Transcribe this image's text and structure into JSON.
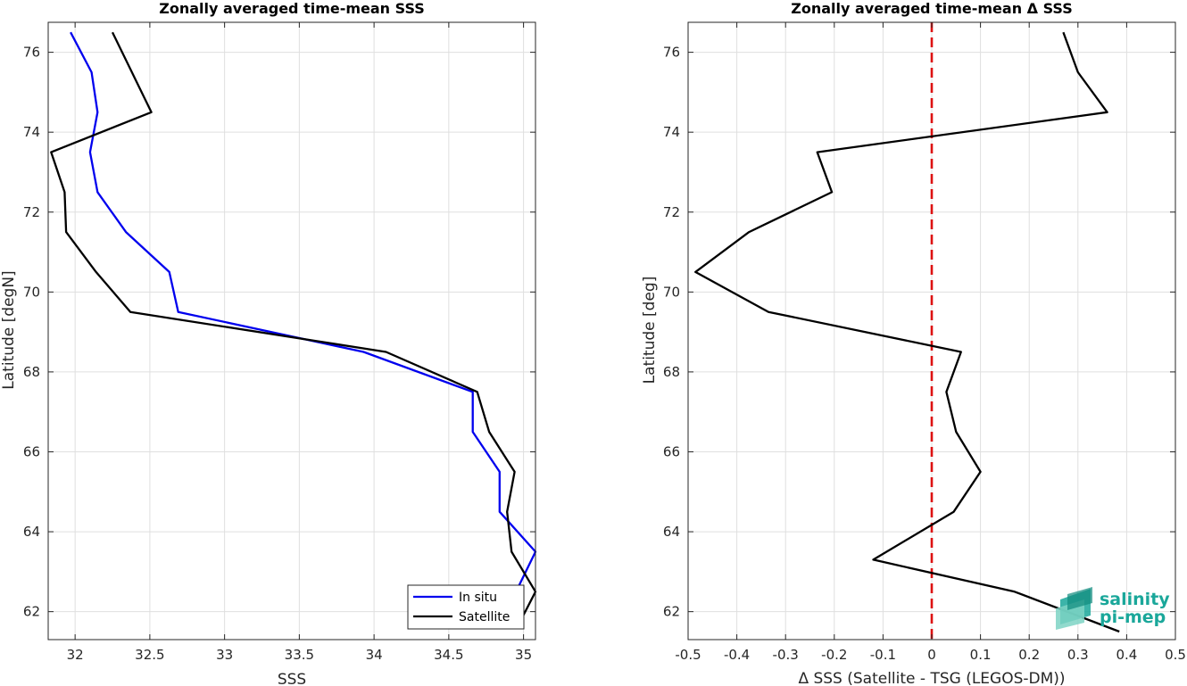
{
  "chart_data": [
    {
      "type": "line",
      "title": "Zonally averaged time-mean SSS",
      "xlabel": "SSS",
      "ylabel": "Latitude [degN]",
      "xlim": [
        31.82,
        35.08
      ],
      "ylim": [
        61.3,
        76.75
      ],
      "xticks": [
        32,
        32.5,
        33,
        33.5,
        34,
        34.5,
        35
      ],
      "xtick_labels": [
        "32",
        "32.5",
        "33",
        "33.5",
        "34",
        "34.5",
        "35"
      ],
      "yticks": [
        62,
        64,
        66,
        68,
        70,
        72,
        74,
        76
      ],
      "ytick_labels": [
        "62",
        "64",
        "66",
        "68",
        "70",
        "72",
        "74",
        "76"
      ],
      "grid": true,
      "legend_position": "bottom-right",
      "series": [
        {
          "name": "In situ",
          "color": "#0000ee",
          "x": [
            31.97,
            32.11,
            32.15,
            32.1,
            32.15,
            32.34,
            32.63,
            32.69,
            33.93,
            34.66,
            34.66,
            34.84,
            34.84,
            35.08,
            34.95,
            34.96
          ],
          "y": [
            76.5,
            75.5,
            74.5,
            73.5,
            72.5,
            71.5,
            70.5,
            69.5,
            68.5,
            67.5,
            66.5,
            65.5,
            64.5,
            63.5,
            62.5,
            61.6
          ]
        },
        {
          "name": "Satellite",
          "color": "#000000",
          "x": [
            32.25,
            32.51,
            31.84,
            31.93,
            31.94,
            32.14,
            32.37,
            34.08,
            34.69,
            34.77,
            34.94,
            34.89,
            34.92,
            35.08,
            34.97
          ],
          "y": [
            76.5,
            74.5,
            73.5,
            72.5,
            71.5,
            70.5,
            69.5,
            68.5,
            67.5,
            66.5,
            65.5,
            64.5,
            63.5,
            62.5,
            61.7
          ]
        }
      ]
    },
    {
      "type": "line",
      "title": "Zonally averaged time-mean Δ SSS",
      "xlabel": "Δ SSS (Satellite - TSG (LEGOS-DM))",
      "ylabel": "Latitude [deg]",
      "xlim": [
        -0.5,
        0.5
      ],
      "ylim": [
        61.3,
        76.75
      ],
      "xticks": [
        -0.5,
        -0.4,
        -0.3,
        -0.2,
        -0.1,
        0,
        0.1,
        0.2,
        0.3,
        0.4,
        0.5
      ],
      "xtick_labels": [
        "-0.5",
        "-0.4",
        "-0.3",
        "-0.2",
        "-0.1",
        "0",
        "0.1",
        "0.2",
        "0.3",
        "0.4",
        "0.5"
      ],
      "yticks": [
        62,
        64,
        66,
        68,
        70,
        72,
        74,
        76
      ],
      "ytick_labels": [
        "62",
        "64",
        "66",
        "68",
        "70",
        "72",
        "74",
        "76"
      ],
      "grid": true,
      "series": [
        {
          "color": "#000000",
          "x": [
            0.27,
            0.3,
            0.36,
            -0.235,
            -0.205,
            -0.375,
            -0.485,
            -0.335,
            0.06,
            0.03,
            0.05,
            0.1,
            0.045,
            -0.12,
            0.17,
            0.385
          ],
          "y": [
            76.5,
            75.5,
            74.5,
            73.5,
            72.5,
            71.5,
            70.5,
            69.5,
            68.5,
            67.5,
            66.5,
            65.5,
            64.5,
            63.3,
            62.5,
            61.5
          ]
        }
      ],
      "reference_line": {
        "x": 0,
        "color": "#dd1111",
        "style": "dashed"
      }
    }
  ],
  "logo": {
    "line1": "salinity",
    "line2": "pi-mep",
    "color": "#1aa79a"
  }
}
